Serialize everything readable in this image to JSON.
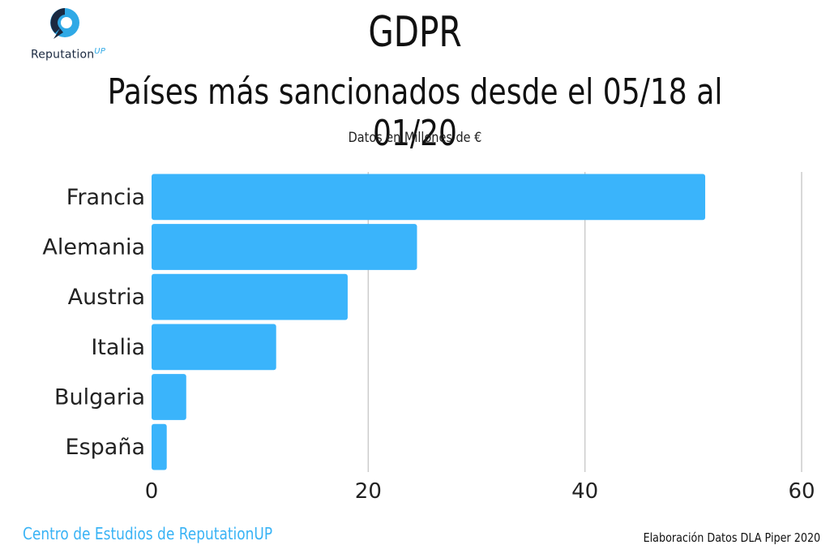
{
  "logo": {
    "brand": "Reputation",
    "brand_suffix": "UP",
    "accent": "#2fa9e6",
    "dark": "#1b2a41"
  },
  "header": {
    "title": "GDPR",
    "subtitle": "Países más sancionados desde el 05/18 al 01/20",
    "note": "Datos en Millones de €"
  },
  "footer": {
    "left": "Centro de Estudios de ReputationUP",
    "right": "Elaboración Datos DLA Piper 2020"
  },
  "colors": {
    "bar": "#3ab4fb",
    "grid": "#cccccc",
    "footer_accent": "#39b3f5"
  },
  "chart_data": {
    "type": "bar",
    "orientation": "horizontal",
    "categories": [
      "Francia",
      "Alemania",
      "Austria",
      "Italia",
      "Bulgaria",
      "España"
    ],
    "values": [
      51.1,
      24.5,
      18.1,
      11.5,
      3.2,
      1.4
    ],
    "xlim": [
      0,
      60
    ],
    "xticks": [
      0,
      20,
      40,
      60
    ],
    "grid": true,
    "legend": "none"
  }
}
